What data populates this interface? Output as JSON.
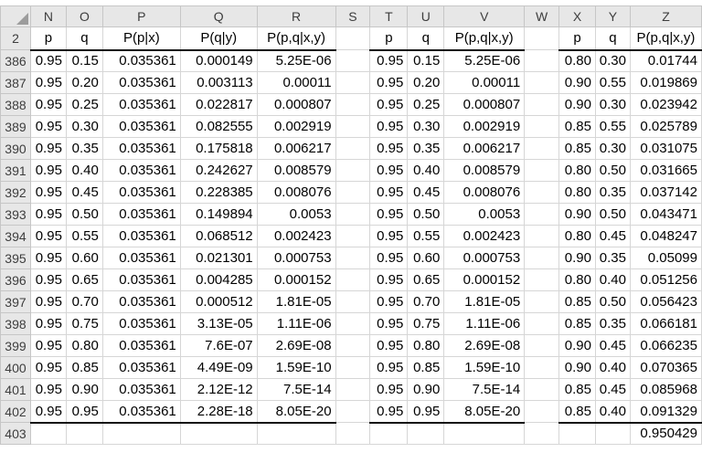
{
  "sheet": {
    "colors": {
      "header_bg": "#e7e7e7",
      "header_text": "#3d3d3d",
      "header_gridline": "#c6c6c6",
      "cell_gridline": "#d6d6d6",
      "strong_border": "#111111",
      "cell_text": "#000000"
    },
    "column_letters": [
      "N",
      "O",
      "P",
      "Q",
      "R",
      "S",
      "T",
      "U",
      "V",
      "W",
      "X",
      "Y",
      "Z"
    ],
    "header_row": {
      "number": "2",
      "cells": [
        "p",
        "q",
        "P(p|x)",
        "P(q|y)",
        "P(p,q|x,y)",
        "",
        "p",
        "q",
        "P(p,q|x,y)",
        "",
        "p",
        "q",
        "P(p,q|x,y)"
      ]
    },
    "rows": [
      {
        "number": "386",
        "cells": [
          "0.95",
          "0.15",
          "0.035361",
          "0.000149",
          "5.25E-06",
          "",
          "0.95",
          "0.15",
          "5.25E-06",
          "",
          "0.80",
          "0.30",
          "0.01744"
        ]
      },
      {
        "number": "387",
        "cells": [
          "0.95",
          "0.20",
          "0.035361",
          "0.003113",
          "0.00011",
          "",
          "0.95",
          "0.20",
          "0.00011",
          "",
          "0.90",
          "0.55",
          "0.019869"
        ]
      },
      {
        "number": "388",
        "cells": [
          "0.95",
          "0.25",
          "0.035361",
          "0.022817",
          "0.000807",
          "",
          "0.95",
          "0.25",
          "0.000807",
          "",
          "0.90",
          "0.30",
          "0.023942"
        ]
      },
      {
        "number": "389",
        "cells": [
          "0.95",
          "0.30",
          "0.035361",
          "0.082555",
          "0.002919",
          "",
          "0.95",
          "0.30",
          "0.002919",
          "",
          "0.85",
          "0.55",
          "0.025789"
        ]
      },
      {
        "number": "390",
        "cells": [
          "0.95",
          "0.35",
          "0.035361",
          "0.175818",
          "0.006217",
          "",
          "0.95",
          "0.35",
          "0.006217",
          "",
          "0.85",
          "0.30",
          "0.031075"
        ]
      },
      {
        "number": "391",
        "cells": [
          "0.95",
          "0.40",
          "0.035361",
          "0.242627",
          "0.008579",
          "",
          "0.95",
          "0.40",
          "0.008579",
          "",
          "0.80",
          "0.50",
          "0.031665"
        ]
      },
      {
        "number": "392",
        "cells": [
          "0.95",
          "0.45",
          "0.035361",
          "0.228385",
          "0.008076",
          "",
          "0.95",
          "0.45",
          "0.008076",
          "",
          "0.80",
          "0.35",
          "0.037142"
        ]
      },
      {
        "number": "393",
        "cells": [
          "0.95",
          "0.50",
          "0.035361",
          "0.149894",
          "0.0053",
          "",
          "0.95",
          "0.50",
          "0.0053",
          "",
          "0.90",
          "0.50",
          "0.043471"
        ]
      },
      {
        "number": "394",
        "cells": [
          "0.95",
          "0.55",
          "0.035361",
          "0.068512",
          "0.002423",
          "",
          "0.95",
          "0.55",
          "0.002423",
          "",
          "0.80",
          "0.45",
          "0.048247"
        ]
      },
      {
        "number": "395",
        "cells": [
          "0.95",
          "0.60",
          "0.035361",
          "0.021301",
          "0.000753",
          "",
          "0.95",
          "0.60",
          "0.000753",
          "",
          "0.90",
          "0.35",
          "0.05099"
        ]
      },
      {
        "number": "396",
        "cells": [
          "0.95",
          "0.65",
          "0.035361",
          "0.004285",
          "0.000152",
          "",
          "0.95",
          "0.65",
          "0.000152",
          "",
          "0.80",
          "0.40",
          "0.051256"
        ]
      },
      {
        "number": "397",
        "cells": [
          "0.95",
          "0.70",
          "0.035361",
          "0.000512",
          "1.81E-05",
          "",
          "0.95",
          "0.70",
          "1.81E-05",
          "",
          "0.85",
          "0.50",
          "0.056423"
        ]
      },
      {
        "number": "398",
        "cells": [
          "0.95",
          "0.75",
          "0.035361",
          "3.13E-05",
          "1.11E-06",
          "",
          "0.95",
          "0.75",
          "1.11E-06",
          "",
          "0.85",
          "0.35",
          "0.066181"
        ]
      },
      {
        "number": "399",
        "cells": [
          "0.95",
          "0.80",
          "0.035361",
          "7.6E-07",
          "2.69E-08",
          "",
          "0.95",
          "0.80",
          "2.69E-08",
          "",
          "0.90",
          "0.45",
          "0.066235"
        ]
      },
      {
        "number": "400",
        "cells": [
          "0.95",
          "0.85",
          "0.035361",
          "4.49E-09",
          "1.59E-10",
          "",
          "0.95",
          "0.85",
          "1.59E-10",
          "",
          "0.90",
          "0.40",
          "0.070365"
        ]
      },
      {
        "number": "401",
        "cells": [
          "0.95",
          "0.90",
          "0.035361",
          "2.12E-12",
          "7.5E-14",
          "",
          "0.95",
          "0.90",
          "7.5E-14",
          "",
          "0.85",
          "0.45",
          "0.085968"
        ]
      },
      {
        "number": "402",
        "cells": [
          "0.95",
          "0.95",
          "0.035361",
          "2.28E-18",
          "8.05E-20",
          "",
          "0.95",
          "0.95",
          "8.05E-20",
          "",
          "0.85",
          "0.40",
          "0.091329"
        ]
      },
      {
        "number": "403",
        "cells": [
          "",
          "",
          "",
          "",
          "",
          "",
          "",
          "",
          "",
          "",
          "",
          "",
          "0.950429"
        ]
      }
    ],
    "underline_after_row_numbers": [
      "2",
      "402"
    ]
  }
}
